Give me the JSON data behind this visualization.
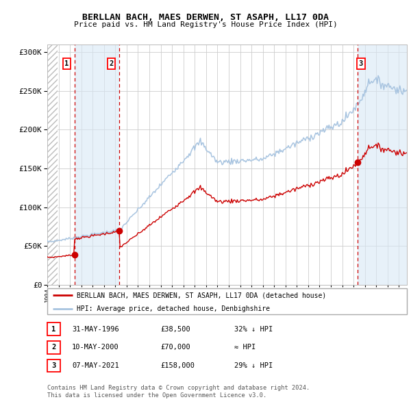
{
  "title": "BERLLAN BACH, MAES DERWEN, ST ASAPH, LL17 0DA",
  "subtitle": "Price paid vs. HM Land Registry's House Price Index (HPI)",
  "legend_line1": "BERLLAN BACH, MAES DERWEN, ST ASAPH, LL17 0DA (detached house)",
  "legend_line2": "HPI: Average price, detached house, Denbighshire",
  "table_rows": [
    {
      "num": "1",
      "date": "31-MAY-1996",
      "price": "£38,500",
      "hpi": "32% ↓ HPI"
    },
    {
      "num": "2",
      "date": "10-MAY-2000",
      "price": "£70,000",
      "hpi": "≈ HPI"
    },
    {
      "num": "3",
      "date": "07-MAY-2021",
      "price": "£158,000",
      "hpi": "29% ↓ HPI"
    }
  ],
  "footnote": "Contains HM Land Registry data © Crown copyright and database right 2024.\nThis data is licensed under the Open Government Licence v3.0.",
  "hpi_color": "#a8c4e0",
  "price_color": "#cc0000",
  "dot_color": "#cc0000",
  "vline_color": "#cc0000",
  "shade_color": "#d8e8f5",
  "grid_color": "#cccccc",
  "bg_color": "#ffffff",
  "ylim": [
    0,
    310000
  ],
  "yticks": [
    0,
    50000,
    100000,
    150000,
    200000,
    250000,
    300000
  ],
  "purchase_dates": [
    1996.41,
    2000.36,
    2021.35
  ],
  "purchase_prices": [
    38500,
    70000,
    158000
  ],
  "xmin": 1994.0,
  "xmax": 2025.7
}
